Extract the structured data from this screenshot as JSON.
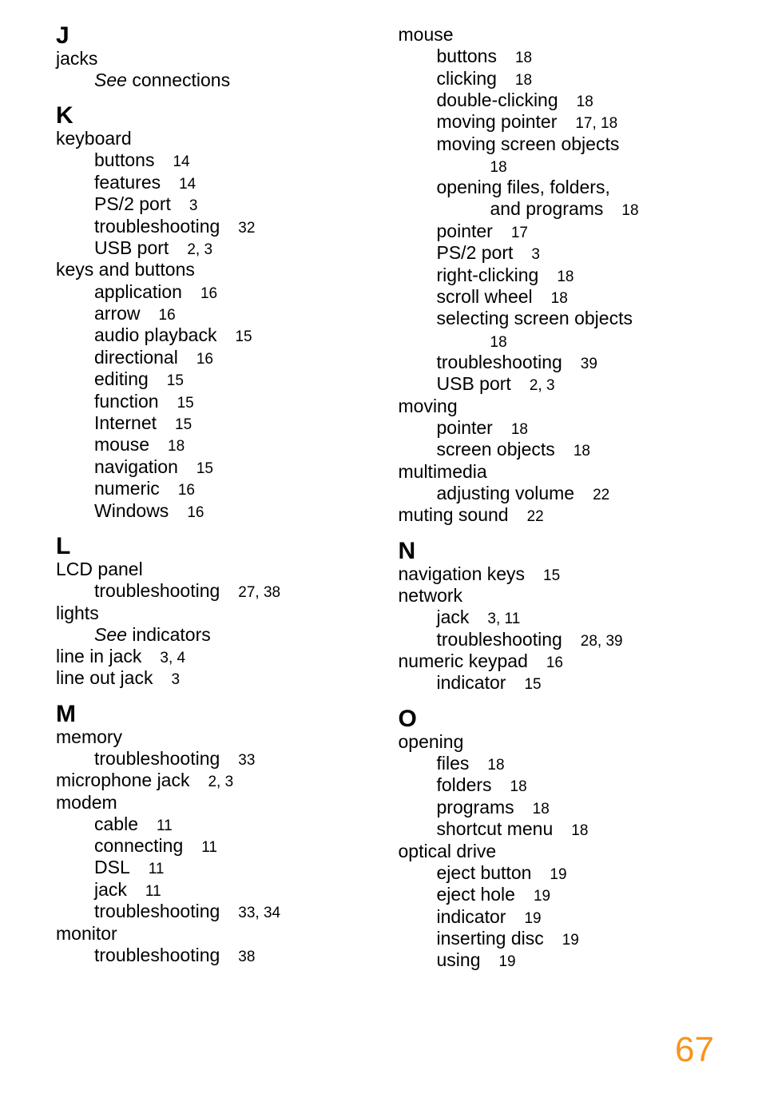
{
  "page_number": "67",
  "page_number_color": "#f7941d",
  "left": {
    "J": {
      "letter": "J",
      "entries": [
        {
          "t": "jacks",
          "lvl": 0
        },
        {
          "t_italic": "See",
          "t_rest": " connections",
          "lvl": 1
        }
      ]
    },
    "K": {
      "letter": "K",
      "entries": [
        {
          "t": "keyboard",
          "lvl": 0
        },
        {
          "t": "buttons",
          "pn": "14",
          "lvl": 1
        },
        {
          "t": "features",
          "pn": "14",
          "lvl": 1
        },
        {
          "t": "PS/2 port",
          "pn": "3",
          "lvl": 1
        },
        {
          "t": "troubleshooting",
          "pn": "32",
          "lvl": 1
        },
        {
          "t": "USB port",
          "pn": "2, 3",
          "lvl": 1
        },
        {
          "t": "keys and buttons",
          "lvl": 0
        },
        {
          "t": "application",
          "pn": "16",
          "lvl": 1
        },
        {
          "t": "arrow",
          "pn": "16",
          "lvl": 1
        },
        {
          "t": "audio playback",
          "pn": "15",
          "lvl": 1
        },
        {
          "t": "directional",
          "pn": "16",
          "lvl": 1
        },
        {
          "t": "editing",
          "pn": "15",
          "lvl": 1
        },
        {
          "t": "function",
          "pn": "15",
          "lvl": 1
        },
        {
          "t": "Internet",
          "pn": "15",
          "lvl": 1
        },
        {
          "t": "mouse",
          "pn": "18",
          "lvl": 1
        },
        {
          "t": "navigation",
          "pn": "15",
          "lvl": 1
        },
        {
          "t": "numeric",
          "pn": "16",
          "lvl": 1
        },
        {
          "t": "Windows",
          "pn": "16",
          "lvl": 1
        }
      ]
    },
    "L": {
      "letter": "L",
      "entries": [
        {
          "t": "LCD panel",
          "lvl": 0
        },
        {
          "t": "troubleshooting",
          "pn": "27, 38",
          "lvl": 1
        },
        {
          "t": "lights",
          "lvl": 0
        },
        {
          "t_italic": "See",
          "t_rest": " indicators",
          "lvl": 1
        },
        {
          "t": "line in jack",
          "pn": "3, 4",
          "lvl": 0
        },
        {
          "t": "line out jack",
          "pn": "3",
          "lvl": 0
        }
      ]
    },
    "M": {
      "letter": "M",
      "entries": [
        {
          "t": "memory",
          "lvl": 0
        },
        {
          "t": "troubleshooting",
          "pn": "33",
          "lvl": 1
        },
        {
          "t": "microphone jack",
          "pn": "2, 3",
          "lvl": 0
        },
        {
          "t": "modem",
          "lvl": 0
        },
        {
          "t": "cable",
          "pn": "11",
          "lvl": 1
        },
        {
          "t": "connecting",
          "pn": "11",
          "lvl": 1
        },
        {
          "t": "DSL",
          "pn": "11",
          "lvl": 1
        },
        {
          "t": "jack",
          "pn": "11",
          "lvl": 1
        },
        {
          "t": "troubleshooting",
          "pn": "33, 34",
          "lvl": 1
        },
        {
          "t": "monitor",
          "lvl": 0
        },
        {
          "t": "troubleshooting",
          "pn": "38",
          "lvl": 1
        }
      ]
    }
  },
  "right": {
    "Mcont": {
      "entries": [
        {
          "t": "mouse",
          "lvl": 0
        },
        {
          "t": "buttons",
          "pn": "18",
          "lvl": 1
        },
        {
          "t": "clicking",
          "pn": "18",
          "lvl": 1
        },
        {
          "t": "double-clicking",
          "pn": "18",
          "lvl": 1
        },
        {
          "t": "moving pointer",
          "pn": "17, 18",
          "lvl": 1
        },
        {
          "t": "moving screen objects",
          "lvl": 1
        },
        {
          "pn_only": "18",
          "lvl": 2
        },
        {
          "t": "opening files, folders,",
          "lvl": 1
        },
        {
          "t": "and programs",
          "pn": "18",
          "lvl": 2
        },
        {
          "t": "pointer",
          "pn": "17",
          "lvl": 1
        },
        {
          "t": "PS/2 port",
          "pn": "3",
          "lvl": 1
        },
        {
          "t": "right-clicking",
          "pn": "18",
          "lvl": 1
        },
        {
          "t": "scroll wheel",
          "pn": "18",
          "lvl": 1
        },
        {
          "t": "selecting screen objects",
          "lvl": 1
        },
        {
          "pn_only": "18",
          "lvl": 2
        },
        {
          "t": "troubleshooting",
          "pn": "39",
          "lvl": 1
        },
        {
          "t": "USB port",
          "pn": "2, 3",
          "lvl": 1
        },
        {
          "t": "moving",
          "lvl": 0
        },
        {
          "t": "pointer",
          "pn": "18",
          "lvl": 1
        },
        {
          "t": "screen objects",
          "pn": "18",
          "lvl": 1
        },
        {
          "t": "multimedia",
          "lvl": 0
        },
        {
          "t": "adjusting volume",
          "pn": "22",
          "lvl": 1
        },
        {
          "t": "muting sound",
          "pn": "22",
          "lvl": 0
        }
      ]
    },
    "N": {
      "letter": "N",
      "entries": [
        {
          "t": "navigation keys",
          "pn": "15",
          "lvl": 0
        },
        {
          "t": "network",
          "lvl": 0
        },
        {
          "t": "jack",
          "pn": "3, 11",
          "lvl": 1
        },
        {
          "t": "troubleshooting",
          "pn": "28, 39",
          "lvl": 1
        },
        {
          "t": "numeric keypad",
          "pn": "16",
          "lvl": 0
        },
        {
          "t": "indicator",
          "pn": "15",
          "lvl": 1
        }
      ]
    },
    "O": {
      "letter": "O",
      "entries": [
        {
          "t": "opening",
          "lvl": 0
        },
        {
          "t": "files",
          "pn": "18",
          "lvl": 1
        },
        {
          "t": "folders",
          "pn": "18",
          "lvl": 1
        },
        {
          "t": "programs",
          "pn": "18",
          "lvl": 1
        },
        {
          "t": "shortcut menu",
          "pn": "18",
          "lvl": 1
        },
        {
          "t": "optical drive",
          "lvl": 0
        },
        {
          "t": "eject button",
          "pn": "19",
          "lvl": 1
        },
        {
          "t": "eject hole",
          "pn": "19",
          "lvl": 1
        },
        {
          "t": "indicator",
          "pn": "19",
          "lvl": 1
        },
        {
          "t": "inserting disc",
          "pn": "19",
          "lvl": 1
        },
        {
          "t": "using",
          "pn": "19",
          "lvl": 1
        }
      ]
    }
  }
}
